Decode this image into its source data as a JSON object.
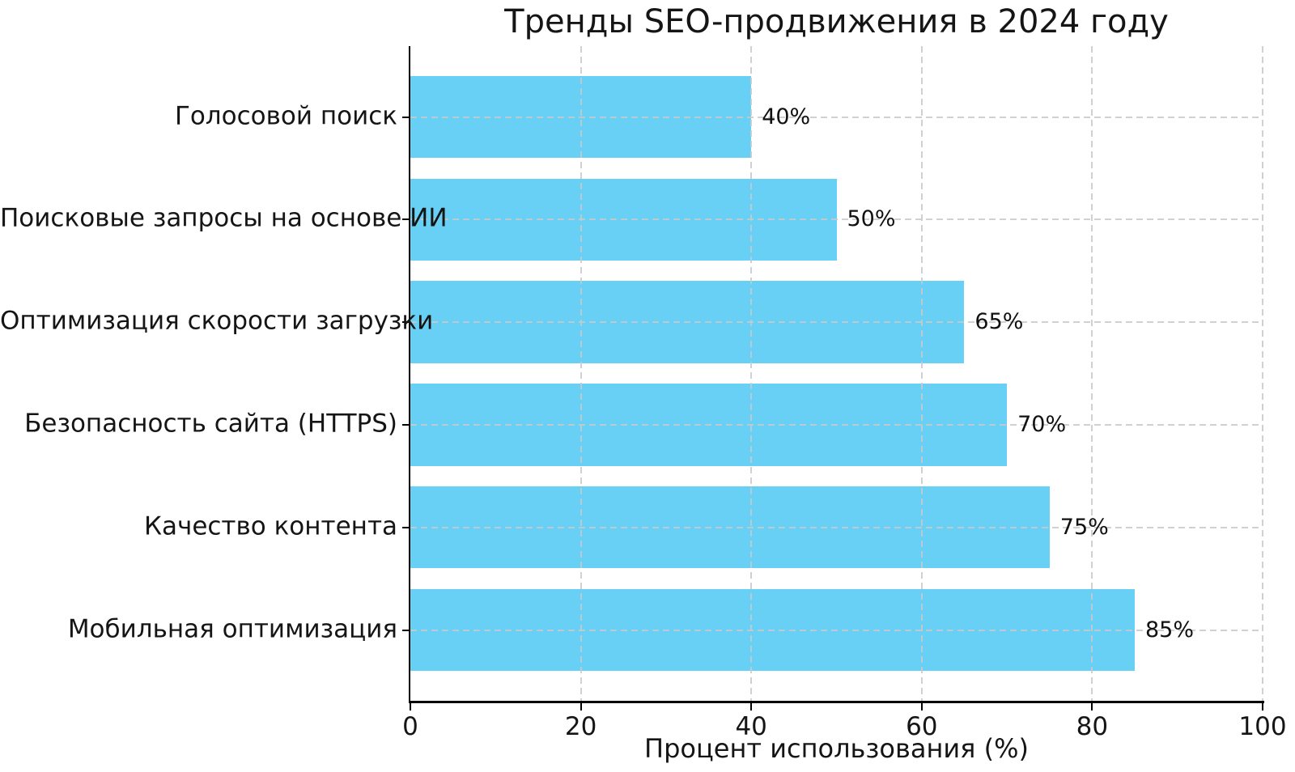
{
  "chart_data": {
    "type": "bar",
    "orientation": "horizontal",
    "title": "Тренды SEO-продвижения в 2024 году",
    "categories": [
      "Голосовой поиск",
      "Поисковые запросы на основе ИИ",
      "Оптимизация скорости загрузки",
      "Безопасность сайта (HTTPS)",
      "Качество контента",
      "Мобильная оптимизация"
    ],
    "values": [
      40,
      50,
      65,
      70,
      75,
      85
    ],
    "value_labels": [
      "40%",
      "50%",
      "65%",
      "70%",
      "75%",
      "85%"
    ],
    "xlabel": "Процент использования (%)",
    "ylabel": "",
    "xlim": [
      0,
      100
    ],
    "x_ticks": [
      0,
      20,
      40,
      60,
      80,
      100
    ],
    "grid": {
      "visible": true,
      "axis": "both",
      "style": "dashed",
      "color": "#c9c9c9",
      "above_bars": true
    },
    "legend_position": "none",
    "bar_color": "#69d0f5",
    "axis_color": "#000000",
    "text_color": "#151515",
    "background_color": "#ffffff"
  }
}
